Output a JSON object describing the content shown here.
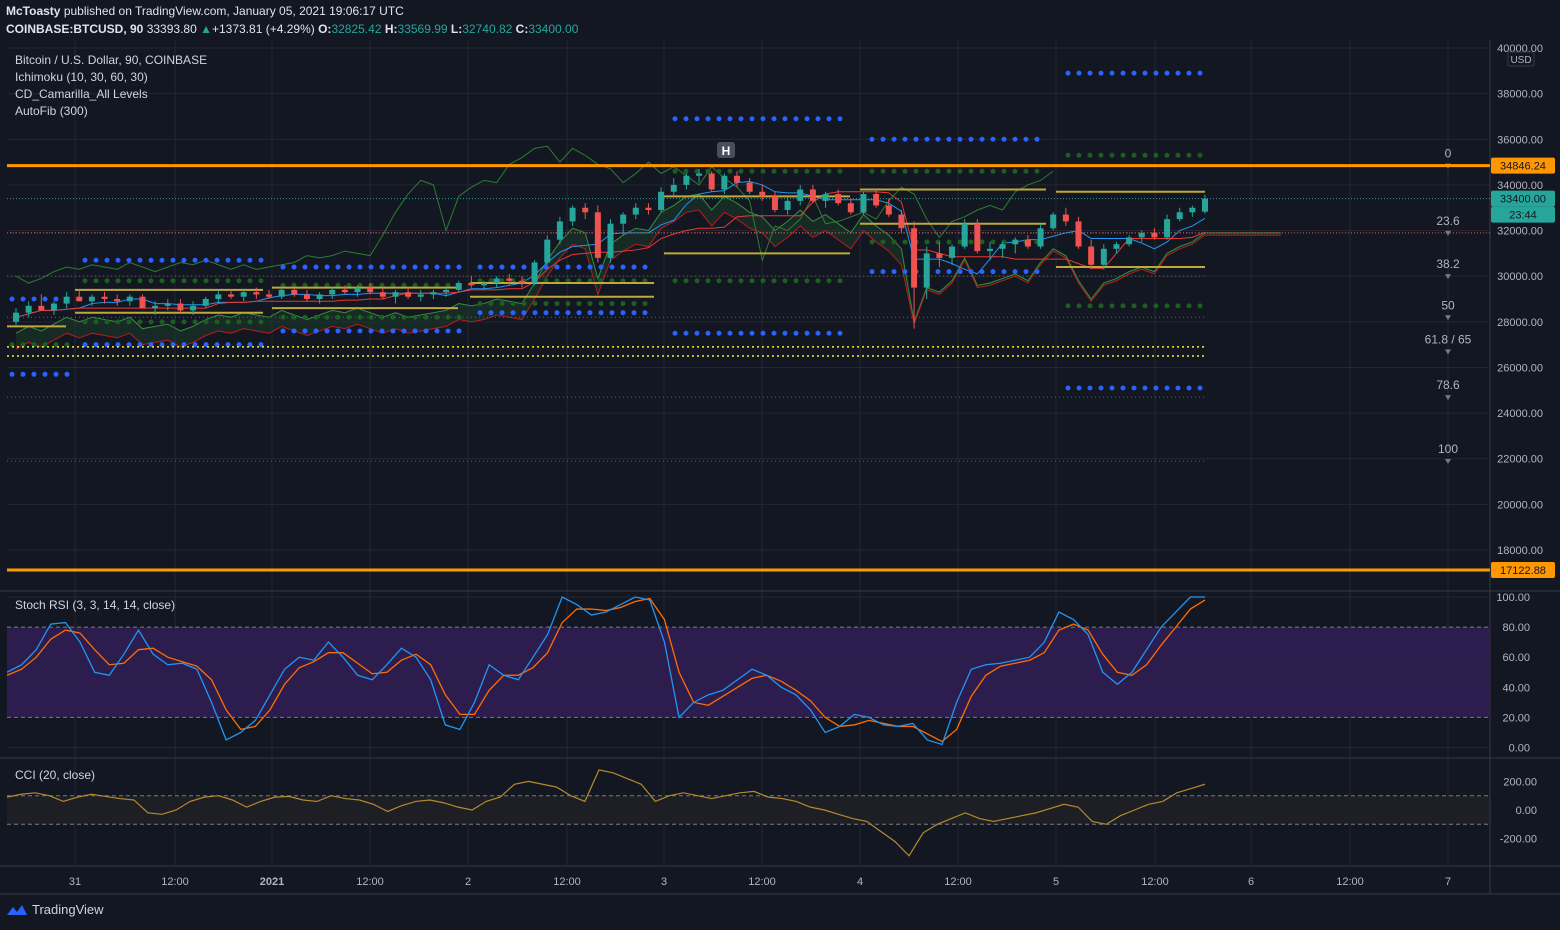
{
  "header": {
    "author": "McToasty",
    "published_text": "published on TradingView.com, January 05, 2021 19:06:17 UTC",
    "symbol": "COINBASE:BTCUSD, 90",
    "last": "33393.80",
    "change": "+1373.81 (+4.29%)",
    "o_label": "O:",
    "o_value": "32825.42",
    "h_label": "H:",
    "h_value": "33569.99",
    "l_label": "L:",
    "l_value": "32740.82",
    "c_label": "C:",
    "c_value": "33400.00"
  },
  "legend": {
    "title": "Bitcoin / U.S. Dollar, 90, COINBASE",
    "ichimoku": "Ichimoku (10, 30, 60, 30)",
    "camarilla": "CD_Camarilla_All Levels",
    "autofib": "AutoFib (300)"
  },
  "price_axis": {
    "currency": "USD",
    "ticks": [
      "40000.00",
      "38000.00",
      "36000.00",
      "34000.00",
      "32000.00",
      "30000.00",
      "28000.00",
      "26000.00",
      "24000.00",
      "22000.00",
      "20000.00",
      "18000.00"
    ],
    "price_labels": [
      {
        "text": "34846.24",
        "value": 34846.24,
        "color": "#ff9800"
      },
      {
        "text": "33400.00",
        "value": 33400.0,
        "color": "#26a69a"
      },
      {
        "text": "23:44",
        "value": 32700,
        "color": "#26a69a"
      },
      {
        "text": "17122.88",
        "value": 17122.88,
        "color": "#ff9800"
      }
    ]
  },
  "fib_levels": [
    {
      "label": "0",
      "value": 34846.24
    },
    {
      "label": "23.6",
      "value": 31900
    },
    {
      "label": "38.2",
      "value": 30000
    },
    {
      "label": "50",
      "value": 28200
    },
    {
      "label": "61.8 / 65",
      "value": 26700
    },
    {
      "label": "78.6",
      "value": 24700
    },
    {
      "label": "100",
      "value": 21900
    }
  ],
  "marker": {
    "label": "H"
  },
  "time_axis": {
    "labels": [
      "31",
      "12:00",
      "2021",
      "12:00",
      "2",
      "12:00",
      "3",
      "12:00",
      "4",
      "12:00",
      "5",
      "12:00",
      "6",
      "12:00",
      "7"
    ]
  },
  "stoch": {
    "title": "Stoch RSI (3, 3, 14, 14, close)",
    "ticks": [
      "100.00",
      "80.00",
      "60.00",
      "40.00",
      "20.00",
      "0.00"
    ]
  },
  "cci": {
    "title": "CCI (20, close)",
    "ticks": [
      "200.00",
      "0.00",
      "-200.00"
    ]
  },
  "footer": {
    "brand": "TradingView"
  },
  "colors": {
    "background": "#131722",
    "up": "#26a69a",
    "down": "#ef5350",
    "orange": "#ff9800",
    "blue_dots": "#2962ff",
    "green_dots": "#1b5e20"
  },
  "chart_data": {
    "type": "candlestick",
    "title": "Bitcoin / U.S. Dollar, 90, COINBASE",
    "ylim": [
      16000,
      40500
    ],
    "x_categories": [
      "31",
      "12:00",
      "2021",
      "12:00",
      "2",
      "12:00",
      "3",
      "12:00",
      "4",
      "12:00",
      "5",
      "12:00",
      "6",
      "12:00",
      "7"
    ],
    "candles": [
      [
        28000,
        28600,
        27800,
        28400
      ],
      [
        28400,
        28900,
        28200,
        28700
      ],
      [
        28700,
        29200,
        28500,
        28500
      ],
      [
        28500,
        28900,
        28300,
        28800
      ],
      [
        28800,
        29300,
        28600,
        29100
      ],
      [
        29100,
        29400,
        28900,
        28900
      ],
      [
        28900,
        29200,
        28700,
        29100
      ],
      [
        29100,
        29300,
        28800,
        29000
      ],
      [
        29000,
        29200,
        28700,
        28900
      ],
      [
        28900,
        29200,
        28700,
        29100
      ],
      [
        29100,
        29200,
        28600,
        28600
      ],
      [
        28600,
        28900,
        28300,
        28700
      ],
      [
        28700,
        29000,
        28500,
        28800
      ],
      [
        28800,
        29000,
        28400,
        28500
      ],
      [
        28500,
        28900,
        28300,
        28700
      ],
      [
        28700,
        29100,
        28600,
        29000
      ],
      [
        29000,
        29400,
        28800,
        29200
      ],
      [
        29200,
        29400,
        29000,
        29100
      ],
      [
        29100,
        29400,
        28900,
        29300
      ],
      [
        29300,
        29500,
        29000,
        29200
      ],
      [
        29200,
        29400,
        29000,
        29100
      ],
      [
        29100,
        29500,
        29000,
        29400
      ],
      [
        29400,
        29500,
        29100,
        29200
      ],
      [
        29200,
        29400,
        28900,
        29000
      ],
      [
        29000,
        29300,
        28800,
        29200
      ],
      [
        29200,
        29500,
        29000,
        29400
      ],
      [
        29400,
        29600,
        29200,
        29300
      ],
      [
        29300,
        29600,
        29100,
        29500
      ],
      [
        29500,
        29700,
        29200,
        29300
      ],
      [
        29300,
        29500,
        29000,
        29100
      ],
      [
        29100,
        29400,
        28800,
        29300
      ],
      [
        29300,
        29500,
        29000,
        29100
      ],
      [
        29100,
        29400,
        28900,
        29200
      ],
      [
        29200,
        29400,
        29000,
        29300
      ],
      [
        29300,
        29500,
        29100,
        29400
      ],
      [
        29400,
        29800,
        29300,
        29700
      ],
      [
        29700,
        30000,
        29500,
        29600
      ],
      [
        29600,
        29800,
        29400,
        29700
      ],
      [
        29700,
        30000,
        29500,
        29900
      ],
      [
        29900,
        30100,
        29600,
        29800
      ],
      [
        29800,
        30000,
        29500,
        29700
      ],
      [
        29700,
        30700,
        29600,
        30600
      ],
      [
        30600,
        31800,
        30500,
        31600
      ],
      [
        31600,
        32600,
        31400,
        32400
      ],
      [
        32400,
        33100,
        32200,
        33000
      ],
      [
        33000,
        33200,
        32500,
        32800
      ],
      [
        32800,
        33100,
        30600,
        30800
      ],
      [
        30800,
        32500,
        30600,
        32300
      ],
      [
        32300,
        32800,
        31800,
        32700
      ],
      [
        32700,
        33200,
        32500,
        33000
      ],
      [
        33000,
        33200,
        32700,
        32900
      ],
      [
        32900,
        33900,
        32800,
        33700
      ],
      [
        33700,
        34300,
        33500,
        34000
      ],
      [
        34000,
        34500,
        33800,
        34400
      ],
      [
        34400,
        34700,
        34100,
        34500
      ],
      [
        34500,
        34600,
        33700,
        33800
      ],
      [
        33800,
        34500,
        33600,
        34400
      ],
      [
        34400,
        34600,
        33900,
        34100
      ],
      [
        34100,
        34300,
        33600,
        33700
      ],
      [
        33700,
        34000,
        33300,
        33500
      ],
      [
        33500,
        33700,
        32800,
        32900
      ],
      [
        32900,
        33500,
        32700,
        33300
      ],
      [
        33300,
        34000,
        33100,
        33800
      ],
      [
        33800,
        34000,
        33200,
        33300
      ],
      [
        33300,
        33700,
        33000,
        33600
      ],
      [
        33600,
        33800,
        33100,
        33200
      ],
      [
        33200,
        33400,
        32700,
        32800
      ],
      [
        32800,
        33700,
        32700,
        33600
      ],
      [
        33600,
        33800,
        33000,
        33100
      ],
      [
        33100,
        33400,
        32600,
        32700
      ],
      [
        32700,
        32900,
        31900,
        32100
      ],
      [
        32100,
        32400,
        27700,
        29500
      ],
      [
        29500,
        31300,
        29000,
        31000
      ],
      [
        31000,
        31500,
        30400,
        30800
      ],
      [
        30800,
        31400,
        30500,
        31300
      ],
      [
        31300,
        32500,
        31200,
        32300
      ],
      [
        32300,
        32500,
        31000,
        31100
      ],
      [
        31100,
        31500,
        30700,
        31200
      ],
      [
        31200,
        31500,
        30800,
        31400
      ],
      [
        31400,
        31700,
        31000,
        31600
      ],
      [
        31600,
        31800,
        31200,
        31300
      ],
      [
        31300,
        32300,
        31200,
        32100
      ],
      [
        32100,
        32800,
        32000,
        32700
      ],
      [
        32700,
        33000,
        32200,
        32400
      ],
      [
        32400,
        32600,
        31200,
        31300
      ],
      [
        31300,
        31600,
        30300,
        30500
      ],
      [
        30500,
        31400,
        30300,
        31200
      ],
      [
        31200,
        31500,
        31000,
        31400
      ],
      [
        31400,
        31800,
        31300,
        31700
      ],
      [
        31700,
        32000,
        31500,
        31900
      ],
      [
        31900,
        32100,
        31600,
        31700
      ],
      [
        31700,
        32700,
        31600,
        32500
      ],
      [
        32500,
        33000,
        32400,
        32800
      ],
      [
        32800,
        33100,
        32600,
        33000
      ],
      [
        32825.42,
        33569.99,
        32740.82,
        33400
      ]
    ],
    "stoch_k": [
      50,
      55,
      65,
      82,
      83,
      70,
      50,
      48,
      62,
      78,
      62,
      55,
      56,
      52,
      30,
      5,
      10,
      18,
      35,
      52,
      60,
      58,
      70,
      60,
      48,
      45,
      55,
      66,
      60,
      45,
      15,
      12,
      30,
      55,
      48,
      45,
      60,
      75,
      100,
      95,
      88,
      90,
      95,
      100,
      98,
      70,
      20,
      30,
      35,
      38,
      45,
      52,
      48,
      40,
      35,
      25,
      10,
      14,
      22,
      20,
      15,
      14,
      16,
      5,
      2,
      30,
      52,
      55,
      56,
      58,
      60,
      70,
      90,
      85,
      75,
      50,
      42,
      50,
      65,
      80,
      90,
      100,
      100
    ],
    "stoch_d": [
      48,
      52,
      60,
      72,
      78,
      76,
      65,
      55,
      56,
      65,
      66,
      60,
      57,
      54,
      45,
      25,
      12,
      14,
      25,
      42,
      53,
      57,
      63,
      63,
      56,
      49,
      50,
      58,
      62,
      55,
      35,
      22,
      22,
      38,
      48,
      48,
      53,
      63,
      83,
      92,
      92,
      91,
      93,
      97,
      99,
      85,
      50,
      30,
      28,
      34,
      40,
      46,
      48,
      44,
      38,
      31,
      20,
      14,
      15,
      18,
      16,
      14,
      14,
      9,
      4,
      12,
      34,
      48,
      54,
      56,
      58,
      63,
      78,
      82,
      78,
      62,
      50,
      48,
      55,
      68,
      80,
      92,
      98
    ],
    "cci": [
      90,
      110,
      120,
      100,
      60,
      90,
      110,
      95,
      80,
      70,
      -20,
      -30,
      0,
      60,
      90,
      100,
      70,
      20,
      60,
      90,
      95,
      70,
      60,
      100,
      80,
      70,
      40,
      -10,
      30,
      60,
      70,
      50,
      20,
      0,
      60,
      90,
      180,
      200,
      180,
      160,
      100,
      60,
      280,
      260,
      220,
      180,
      60,
      100,
      120,
      100,
      80,
      100,
      120,
      130,
      90,
      80,
      60,
      20,
      0,
      -30,
      -60,
      -80,
      -150,
      -220,
      -320,
      -160,
      -100,
      -60,
      -20,
      -60,
      -80,
      -60,
      -40,
      -20,
      10,
      40,
      20,
      -80,
      -100,
      -40,
      0,
      40,
      60,
      120,
      150,
      180
    ]
  }
}
